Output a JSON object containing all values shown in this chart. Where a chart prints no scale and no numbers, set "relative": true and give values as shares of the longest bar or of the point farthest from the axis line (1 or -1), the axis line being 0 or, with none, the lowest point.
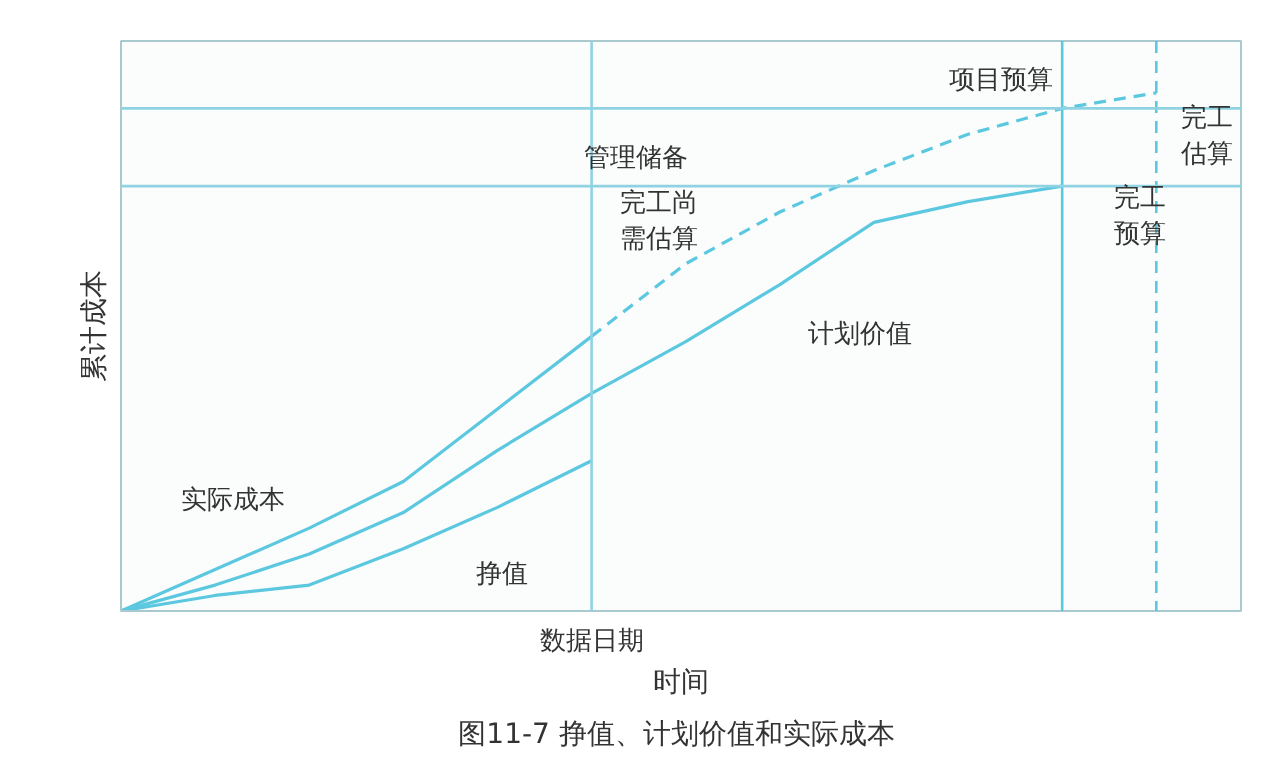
{
  "chart_data": {
    "type": "line",
    "relative": true,
    "title": "图11-7  挣值、计划价值和实际成本",
    "xlabel": "时间",
    "ylabel": "累计成本",
    "categories": [
      null,
      null,
      null,
      null,
      null,
      null,
      null,
      null,
      null,
      null,
      null,
      null
    ],
    "series": [
      {
        "color": "#5bc8e0",
        "values": [
          0,
          0.08,
          0.16,
          0.25,
          0.39,
          0.53,
          null,
          null,
          null,
          null,
          null,
          null
        ]
      },
      {
        "color": "#5bc8e0",
        "line_style": "dashed",
        "values": [
          null,
          null,
          null,
          null,
          null,
          0.53,
          0.67,
          0.77,
          0.85,
          0.92,
          0.97,
          1
        ]
      },
      {
        "color": "#5bc8e0",
        "values": [
          0,
          0.05,
          0.11,
          0.19,
          0.31,
          0.42,
          0.52,
          0.63,
          0.75,
          0.79,
          0.82,
          null
        ]
      },
      {
        "color": "#5bc8e0",
        "values": [
          0,
          0.03,
          0.05,
          0.12,
          0.2,
          0.29,
          null,
          null,
          null,
          null,
          null,
          null
        ]
      }
    ],
    "ref_lines": [
      {
        "axis": "y",
        "value": 0.97,
        "label": "项目预算",
        "color": "#8fd3e3"
      },
      {
        "axis": "y",
        "value": 0.82,
        "label": null,
        "color": "#8fd3e3"
      }
    ],
    "annotations": [
      "实际成本",
      "挣值",
      "计划价值",
      "完工尚需估算",
      "管理储备",
      "完工预算",
      "完工估算",
      "数据日期"
    ]
  }
}
